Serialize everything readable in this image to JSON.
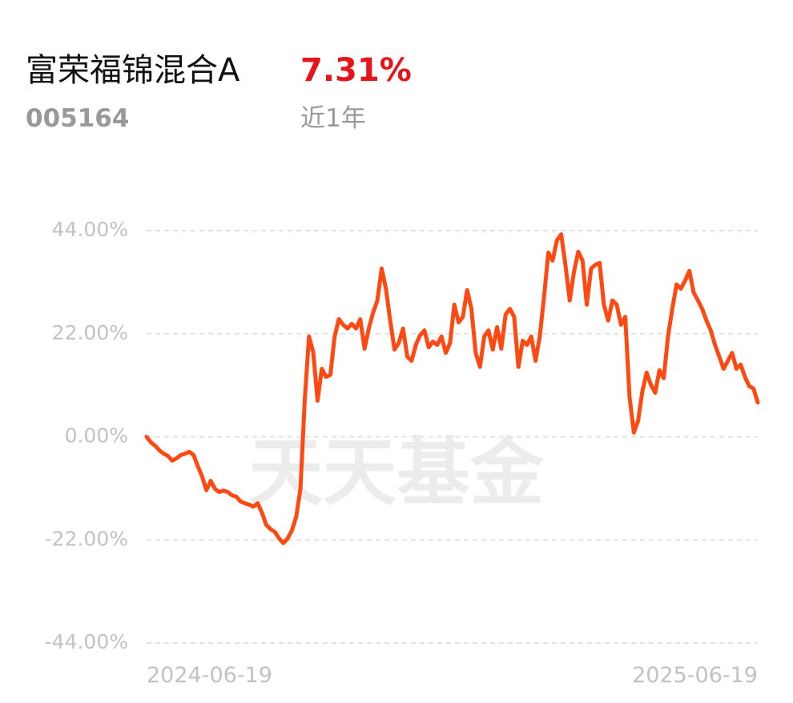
{
  "chart_data": {
    "type": "line",
    "title": "富荣福锦混合A",
    "return": "7.31%",
    "code": "005164",
    "period": "近1年",
    "watermark": "天天基金",
    "color": "#fe4a12",
    "grid": true,
    "ylim": [
      -44,
      44
    ],
    "yticks": [
      {
        "value": 44,
        "label": "44.00%"
      },
      {
        "value": 22,
        "label": "22.00%"
      },
      {
        "value": 0,
        "label": "0.00%"
      },
      {
        "value": -22,
        "label": "-22.00%"
      },
      {
        "value": -44,
        "label": "-44.00%"
      }
    ],
    "categories": [
      "2024-06-19",
      null,
      null,
      null,
      null,
      null,
      null,
      null,
      null,
      null,
      null,
      null,
      null,
      null,
      null,
      null,
      null,
      null,
      null,
      null,
      null,
      null,
      null,
      null,
      null,
      null,
      null,
      null,
      null,
      null,
      null,
      null,
      null,
      null,
      null,
      null,
      null,
      null,
      null,
      null,
      null,
      null,
      null,
      null,
      null,
      null,
      null,
      null,
      null,
      null,
      null,
      null,
      null,
      null,
      null,
      null,
      null,
      null,
      null,
      null,
      null,
      null,
      null,
      null,
      null,
      null,
      null,
      null,
      null,
      null,
      null,
      null,
      null,
      null,
      null,
      null,
      null,
      null,
      null,
      null,
      null,
      null,
      null,
      null,
      null,
      null,
      null,
      null,
      null,
      null,
      null,
      null,
      null,
      null,
      null,
      null,
      null,
      null,
      null,
      null,
      null,
      null,
      null,
      null,
      null,
      null,
      null,
      null,
      null,
      null,
      null,
      null,
      null,
      null,
      null,
      null,
      null,
      null,
      null,
      null,
      null,
      null,
      null,
      null,
      null,
      null,
      null,
      null,
      null,
      null,
      null,
      null,
      null,
      null,
      null,
      null,
      null,
      null,
      null,
      null,
      null,
      null,
      null,
      "2025-06-19"
    ],
    "values": [
      0,
      -1.2,
      -1.9,
      -2.9,
      -3.6,
      -4.1,
      -5.1,
      -4.6,
      -3.9,
      -3.6,
      -3.2,
      -3.9,
      -6.3,
      -8.5,
      -11.4,
      -9.4,
      -11.1,
      -11.8,
      -11.5,
      -11.8,
      -12.5,
      -12.8,
      -13.8,
      -14.2,
      -14.5,
      -14.9,
      -14.2,
      -16.2,
      -18.8,
      -19.7,
      -20.3,
      -21.7,
      -22.7,
      -21.7,
      -20.0,
      -17.1,
      -11.1,
      7.7,
      21.4,
      18.0,
      7.7,
      14.5,
      12.8,
      13.2,
      21.4,
      25.1,
      23.9,
      23.1,
      24.1,
      23.1,
      25.1,
      18.8,
      23.1,
      26.5,
      29.1,
      35.9,
      31.6,
      24.8,
      18.6,
      20.0,
      23.1,
      17.1,
      16.2,
      19.6,
      21.7,
      22.7,
      19.1,
      20.3,
      19.6,
      21.4,
      17.9,
      20.0,
      28.2,
      24.4,
      25.6,
      31.3,
      27.3,
      17.9,
      14.9,
      21.4,
      22.7,
      18.6,
      23.4,
      18.8,
      26.1,
      27.3,
      25.6,
      14.9,
      20.5,
      19.6,
      21.4,
      16.2,
      21.4,
      29.9,
      39.3,
      37.6,
      41.9,
      43.2,
      36.7,
      29.1,
      35.2,
      39.5,
      37.6,
      28.2,
      35.9,
      36.7,
      37.1,
      28.2,
      24.8,
      29.1,
      28.2,
      23.9,
      25.6,
      8.5,
      0.9,
      3.4,
      9.7,
      13.7,
      11.1,
      9.4,
      14.2,
      12.5,
      21.4,
      27.3,
      32.5,
      31.6,
      33.3,
      35.4,
      30.8,
      29.1,
      27.3,
      24.8,
      22.7,
      19.6,
      17.1,
      14.5,
      16.2,
      17.9,
      14.5,
      15.4,
      12.8,
      10.8,
      10.3,
      7.31
    ]
  }
}
